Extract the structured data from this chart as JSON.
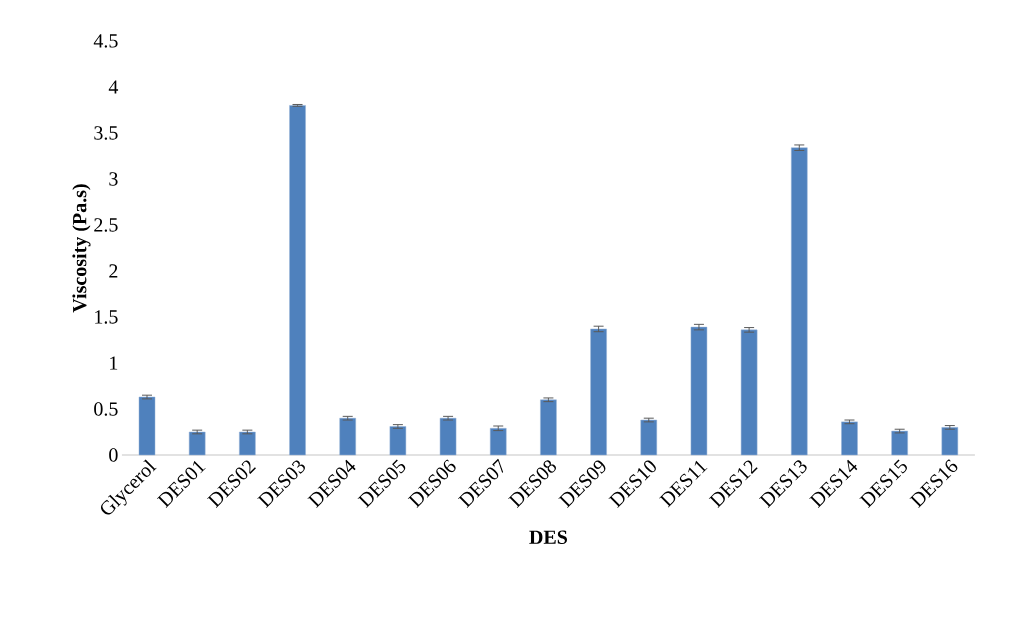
{
  "chart_data": {
    "type": "bar",
    "xlabel": "DES",
    "ylabel": "Viscosity (Pa.s)",
    "categories": [
      "Glycerol",
      "DES01",
      "DES02",
      "DES03",
      "DES04",
      "DES05",
      "DES06",
      "DES07",
      "DES08",
      "DES09",
      "DES10",
      "DES11",
      "DES12",
      "DES13",
      "DES14",
      "DES15",
      "DES16"
    ],
    "values": [
      0.63,
      0.25,
      0.25,
      3.8,
      0.4,
      0.31,
      0.4,
      0.29,
      0.6,
      1.37,
      0.38,
      1.39,
      1.36,
      3.34,
      0.36,
      0.26,
      0.3
    ],
    "errors": [
      0.02,
      0.02,
      0.02,
      0.01,
      0.02,
      0.02,
      0.02,
      0.025,
      0.02,
      0.03,
      0.02,
      0.03,
      0.025,
      0.03,
      0.02,
      0.02,
      0.02
    ],
    "color": "#4f81bd",
    "ylim": [
      0,
      4.5
    ],
    "yticks": [
      0,
      0.5,
      1,
      1.5,
      2,
      2.5,
      3,
      3.5,
      4,
      4.5
    ]
  }
}
